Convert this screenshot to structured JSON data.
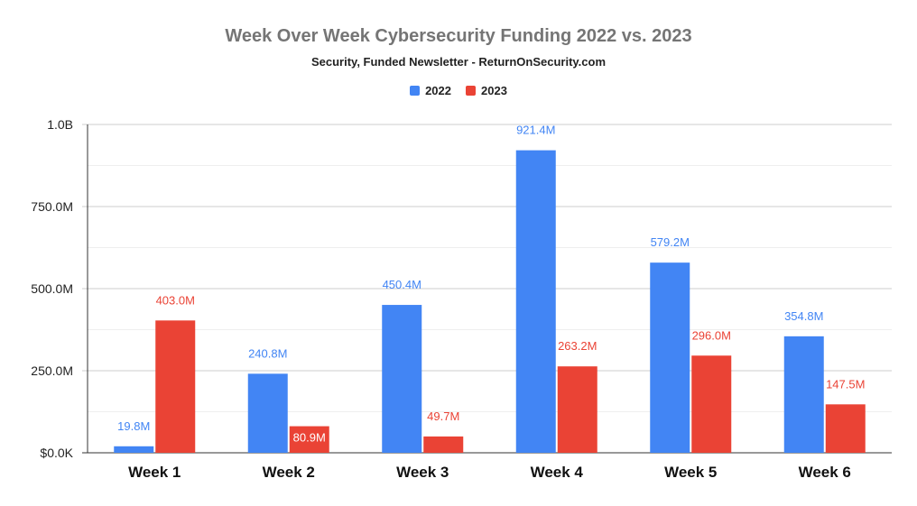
{
  "chart_data": {
    "type": "bar",
    "title": "Week Over Week Cybersecurity Funding 2022 vs. 2023",
    "subtitle": "Security, Funded Newsletter - ReturnOnSecurity.com",
    "categories": [
      "Week 1",
      "Week 2",
      "Week 3",
      "Week 4",
      "Week 5",
      "Week 6"
    ],
    "series": [
      {
        "name": "2022",
        "color": "#4285f4",
        "values": [
          19.8,
          240.8,
          450.4,
          921.4,
          579.2,
          354.8
        ],
        "labels": [
          "19.8M",
          "240.8M",
          "450.4M",
          "921.4M",
          "579.2M",
          "354.8M"
        ]
      },
      {
        "name": "2023",
        "color": "#ea4335",
        "values": [
          403.0,
          80.9,
          49.7,
          263.2,
          296.0,
          147.5
        ],
        "labels": [
          "403.0M",
          "80.9M",
          "49.7M",
          "263.2M",
          "296.0M",
          "147.5M"
        ]
      }
    ],
    "ylim": [
      0,
      1000
    ],
    "yticks": [
      {
        "value": 0,
        "label": "$0.0K"
      },
      {
        "value": 250,
        "label": "250.0M"
      },
      {
        "value": 500,
        "label": "500.0M"
      },
      {
        "value": 750,
        "label": "750.0M"
      },
      {
        "value": 1000,
        "label": "1.0B"
      }
    ],
    "minor_gridlines": [
      125,
      375,
      625,
      875
    ],
    "xlabel": "",
    "ylabel": "",
    "legend_position": "top-center",
    "grid": true
  }
}
